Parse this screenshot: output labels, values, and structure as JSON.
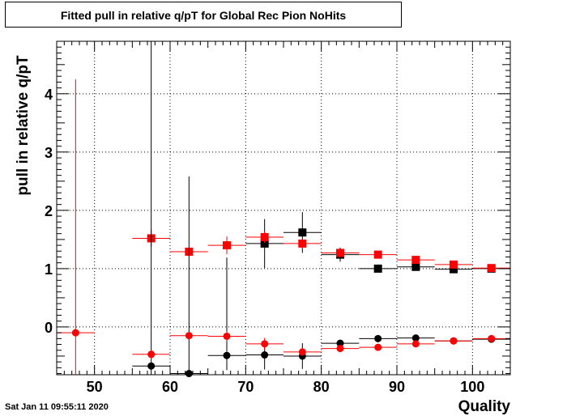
{
  "title": "Fitted pull in relative q/pT for Global Rec Pion NoHits",
  "timestamp": "Sat Jan 11 09:55:11 2020",
  "chart_data": {
    "type": "scatter",
    "xlabel": "Quality",
    "ylabel": "pull in relative q/pT",
    "xlim": [
      45.0,
      105.0
    ],
    "ylim": [
      -0.82,
      4.9
    ],
    "x_ticks": [
      "50",
      "60",
      "70",
      "80",
      "90",
      "100"
    ],
    "y_ticks": [
      "0",
      "1",
      "2",
      "3",
      "4"
    ],
    "grid": true,
    "colors": {
      "black": "#000000",
      "red": "#ff0000"
    },
    "series": [
      {
        "marker": "square",
        "color": "#000000",
        "points": [
          {
            "x": 72.5,
            "y": 1.43,
            "xerr": 2.5,
            "yerr_low": 0.42,
            "yerr_high": 0.42
          },
          {
            "x": 77.5,
            "y": 1.62,
            "xerr": 2.5,
            "yerr_low": 0.35,
            "yerr_high": 0.35
          },
          {
            "x": 82.5,
            "y": 1.24,
            "xerr": 2.5,
            "yerr_low": 0.12,
            "yerr_high": 0.12
          },
          {
            "x": 87.5,
            "y": 1.0,
            "xerr": 2.5,
            "yerr_low": 0.03,
            "yerr_high": 0.03
          },
          {
            "x": 92.5,
            "y": 1.03,
            "xerr": 2.5,
            "yerr_low": 0.02,
            "yerr_high": 0.02
          },
          {
            "x": 97.5,
            "y": 0.99,
            "xerr": 2.5,
            "yerr_low": 0.02,
            "yerr_high": 0.02
          },
          {
            "x": 102.5,
            "y": 1.0,
            "xerr": 2.5,
            "yerr_low": 0.02,
            "yerr_high": 0.02
          }
        ]
      },
      {
        "marker": "square",
        "color": "#ff0000",
        "points": [
          {
            "x": 57.5,
            "y": 1.52,
            "xerr": 2.5,
            "yerr_low": 0.15,
            "yerr_high": 0.15
          },
          {
            "x": 62.5,
            "y": 1.29,
            "xerr": 2.5,
            "yerr_low": 0.05,
            "yerr_high": 0.05
          },
          {
            "x": 67.5,
            "y": 1.4,
            "xerr": 2.5,
            "yerr_low": 0.15,
            "yerr_high": 0.15
          },
          {
            "x": 72.5,
            "y": 1.54,
            "xerr": 2.5,
            "yerr_low": 0.1,
            "yerr_high": 0.1
          },
          {
            "x": 77.5,
            "y": 1.43,
            "xerr": 2.5,
            "yerr_low": 0.08,
            "yerr_high": 0.08
          },
          {
            "x": 82.5,
            "y": 1.27,
            "xerr": 2.5,
            "yerr_low": 0.05,
            "yerr_high": 0.05
          },
          {
            "x": 87.5,
            "y": 1.24,
            "xerr": 2.5,
            "yerr_low": 0.02,
            "yerr_high": 0.02
          },
          {
            "x": 92.5,
            "y": 1.15,
            "xerr": 2.5,
            "yerr_low": 0.02,
            "yerr_high": 0.02
          },
          {
            "x": 97.5,
            "y": 1.07,
            "xerr": 2.5,
            "yerr_low": 0.02,
            "yerr_high": 0.02
          },
          {
            "x": 102.5,
            "y": 1.01,
            "xerr": 2.5,
            "yerr_low": 0.02,
            "yerr_high": 0.02
          }
        ]
      },
      {
        "marker": "circle",
        "color": "#000000",
        "points": [
          {
            "x": 57.5,
            "y": -0.67,
            "xerr": 2.5,
            "yerr_low": 0.2,
            "yerr_high": 5.6
          },
          {
            "x": 62.5,
            "y": -0.8,
            "xerr": 2.5,
            "yerr_low": 0.1,
            "yerr_high": 3.38
          },
          {
            "x": 67.5,
            "y": -0.49,
            "xerr": 2.5,
            "yerr_low": 0.25,
            "yerr_high": 1.68
          },
          {
            "x": 72.5,
            "y": -0.48,
            "xerr": 2.5,
            "yerr_low": 0.25,
            "yerr_high": 0.25
          },
          {
            "x": 77.5,
            "y": -0.5,
            "xerr": 2.5,
            "yerr_low": 0.22,
            "yerr_high": 0.22
          },
          {
            "x": 82.5,
            "y": -0.28,
            "xerr": 2.5,
            "yerr_low": 0.06,
            "yerr_high": 0.06
          },
          {
            "x": 87.5,
            "y": -0.2,
            "xerr": 2.5,
            "yerr_low": 0.03,
            "yerr_high": 0.03
          },
          {
            "x": 92.5,
            "y": -0.19,
            "xerr": 2.5,
            "yerr_low": 0.03,
            "yerr_high": 0.03
          },
          {
            "x": 97.5,
            "y": -0.24,
            "xerr": 2.5,
            "yerr_low": 0.02,
            "yerr_high": 0.02
          },
          {
            "x": 102.5,
            "y": -0.21,
            "xerr": 2.5,
            "yerr_low": 0.02,
            "yerr_high": 0.02
          }
        ]
      },
      {
        "marker": "circle",
        "color": "#ff0000",
        "points": [
          {
            "x": 47.5,
            "y": -0.1,
            "xerr": 2.5,
            "yerr_low": 0.75,
            "yerr_high": 4.35
          },
          {
            "x": 57.5,
            "y": -0.47,
            "xerr": 2.5,
            "yerr_low": 0.08,
            "yerr_high": 0.08
          },
          {
            "x": 62.5,
            "y": -0.15,
            "xerr": 2.5,
            "yerr_low": 0.05,
            "yerr_high": 0.05
          },
          {
            "x": 67.5,
            "y": -0.16,
            "xerr": 2.5,
            "yerr_low": 0.08,
            "yerr_high": 0.08
          },
          {
            "x": 72.5,
            "y": -0.29,
            "xerr": 2.5,
            "yerr_low": 0.1,
            "yerr_high": 0.1
          },
          {
            "x": 77.5,
            "y": -0.43,
            "xerr": 2.5,
            "yerr_low": 0.06,
            "yerr_high": 0.06
          },
          {
            "x": 82.5,
            "y": -0.37,
            "xerr": 2.5,
            "yerr_low": 0.03,
            "yerr_high": 0.03
          },
          {
            "x": 87.5,
            "y": -0.35,
            "xerr": 2.5,
            "yerr_low": 0.03,
            "yerr_high": 0.03
          },
          {
            "x": 92.5,
            "y": -0.29,
            "xerr": 2.5,
            "yerr_low": 0.02,
            "yerr_high": 0.02
          },
          {
            "x": 97.5,
            "y": -0.24,
            "xerr": 2.5,
            "yerr_low": 0.02,
            "yerr_high": 0.02
          },
          {
            "x": 102.5,
            "y": -0.2,
            "xerr": 2.5,
            "yerr_low": 0.02,
            "yerr_high": 0.02
          }
        ]
      }
    ]
  }
}
